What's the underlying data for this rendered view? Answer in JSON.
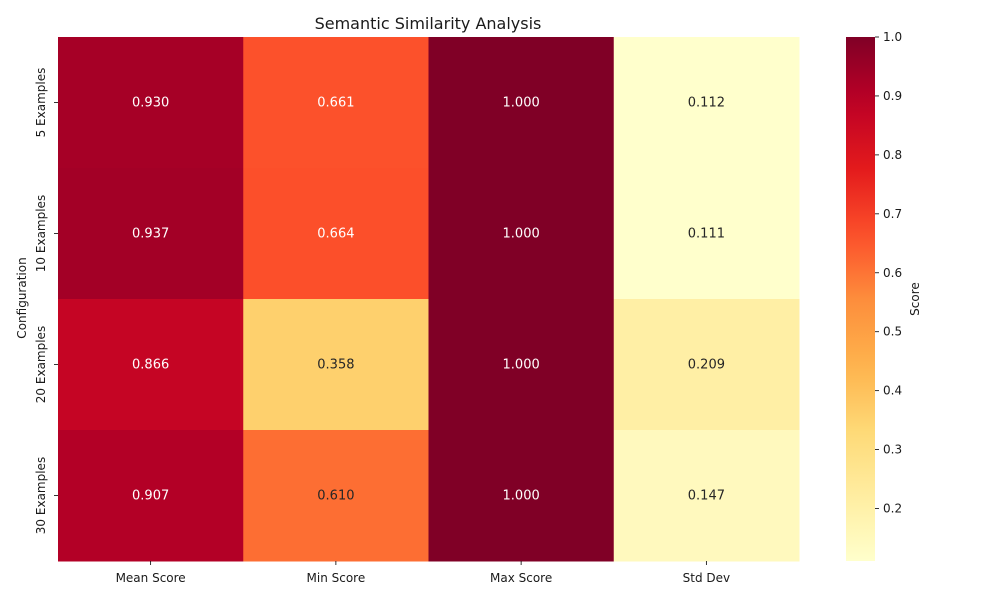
{
  "chart_data": {
    "type": "heatmap",
    "title": "Semantic Similarity Analysis",
    "xlabel": "",
    "ylabel": "Configuration",
    "x_categories": [
      "Mean Score",
      "Min Score",
      "Max Score",
      "Std Dev"
    ],
    "y_categories": [
      "5 Examples",
      "10 Examples",
      "20 Examples",
      "30 Examples"
    ],
    "values": [
      [
        0.93,
        0.661,
        1.0,
        0.112
      ],
      [
        0.937,
        0.664,
        1.0,
        0.111
      ],
      [
        0.866,
        0.358,
        1.0,
        0.209
      ],
      [
        0.907,
        0.61,
        1.0,
        0.147
      ]
    ],
    "value_format": "0.000",
    "colormap": "YlOrRd",
    "colorbar": {
      "label": "Score",
      "range": [
        0.111,
        1.0
      ],
      "ticks": [
        0.2,
        0.3,
        0.4,
        0.5,
        0.6,
        0.7,
        0.8,
        0.9,
        1.0
      ],
      "tick_labels": [
        "0.2",
        "0.3",
        "0.4",
        "0.5",
        "0.6",
        "0.7",
        "0.8",
        "0.9",
        "1.0"
      ]
    },
    "grid": false
  }
}
